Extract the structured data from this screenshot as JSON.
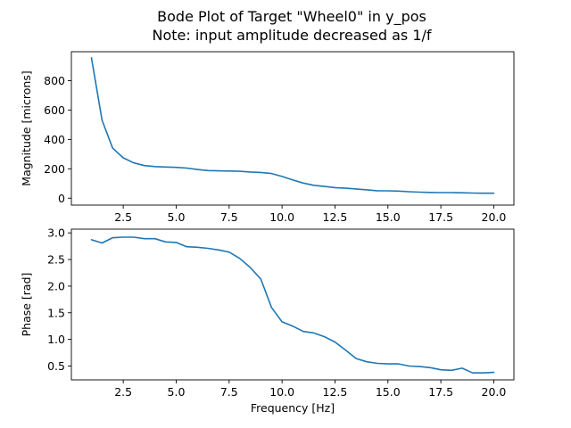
{
  "figure": {
    "title_line1": "Bode Plot of Target \"Wheel0\" in y_pos",
    "title_line2": "Note: input amplitude decreased as 1/f",
    "line_color": "#1f77b4"
  },
  "chart_data": [
    {
      "type": "line",
      "title": "",
      "xlabel": "",
      "ylabel": "Magnitude [microns]",
      "xlim": [
        0.05,
        20.95
      ],
      "ylim": [
        -47,
        997
      ],
      "xticks": [
        2.5,
        5.0,
        7.5,
        10.0,
        12.5,
        15.0,
        17.5,
        20.0
      ],
      "xtick_labels": [
        "2.5",
        "5.0",
        "7.5",
        "10.0",
        "12.5",
        "15.0",
        "17.5",
        "20.0"
      ],
      "yticks": [
        0,
        200,
        400,
        600,
        800
      ],
      "ytick_labels": [
        "0",
        "200",
        "400",
        "600",
        "800"
      ],
      "x": [
        1.0,
        1.5,
        2.0,
        2.5,
        3.0,
        3.5,
        4.0,
        4.5,
        5.0,
        5.5,
        6.0,
        6.5,
        7.0,
        7.5,
        8.0,
        8.5,
        9.0,
        9.5,
        10.0,
        10.5,
        11.0,
        11.5,
        12.0,
        12.5,
        13.0,
        13.5,
        14.0,
        14.5,
        15.0,
        15.5,
        16.0,
        16.5,
        17.0,
        17.5,
        18.0,
        18.5,
        19.0,
        19.5,
        20.0
      ],
      "y": [
        955,
        530,
        340,
        275,
        240,
        222,
        215,
        212,
        210,
        205,
        195,
        188,
        186,
        185,
        183,
        178,
        175,
        168,
        148,
        125,
        103,
        88,
        80,
        72,
        68,
        63,
        57,
        51,
        50,
        48,
        44,
        41,
        39,
        38,
        38,
        37,
        35,
        34,
        34
      ],
      "grid": false
    },
    {
      "type": "line",
      "title": "",
      "xlabel": "Frequency [Hz]",
      "ylabel": "Phase [rad]",
      "xlim": [
        0.05,
        20.95
      ],
      "ylim": [
        0.24,
        3.07
      ],
      "xticks": [
        2.5,
        5.0,
        7.5,
        10.0,
        12.5,
        15.0,
        17.5,
        20.0
      ],
      "xtick_labels": [
        "2.5",
        "5.0",
        "7.5",
        "10.0",
        "12.5",
        "15.0",
        "17.5",
        "20.0"
      ],
      "yticks": [
        0.5,
        1.0,
        1.5,
        2.0,
        2.5,
        3.0
      ],
      "ytick_labels": [
        "0.5",
        "1.0",
        "1.5",
        "2.0",
        "2.5",
        "3.0"
      ],
      "x": [
        1.0,
        1.5,
        2.0,
        2.5,
        3.0,
        3.5,
        4.0,
        4.5,
        5.0,
        5.5,
        6.0,
        6.5,
        7.0,
        7.5,
        8.0,
        8.5,
        9.0,
        9.5,
        10.0,
        10.5,
        11.0,
        11.5,
        12.0,
        12.5,
        13.0,
        13.5,
        14.0,
        14.5,
        15.0,
        15.5,
        16.0,
        16.5,
        17.0,
        17.5,
        18.0,
        18.5,
        19.0,
        19.5,
        20.0
      ],
      "y": [
        2.87,
        2.81,
        2.91,
        2.92,
        2.92,
        2.89,
        2.89,
        2.83,
        2.82,
        2.74,
        2.73,
        2.71,
        2.68,
        2.64,
        2.52,
        2.35,
        2.13,
        1.6,
        1.33,
        1.25,
        1.15,
        1.12,
        1.05,
        0.95,
        0.8,
        0.64,
        0.58,
        0.55,
        0.54,
        0.54,
        0.5,
        0.49,
        0.47,
        0.43,
        0.42,
        0.46,
        0.37,
        0.37,
        0.38
      ],
      "grid": false
    }
  ]
}
